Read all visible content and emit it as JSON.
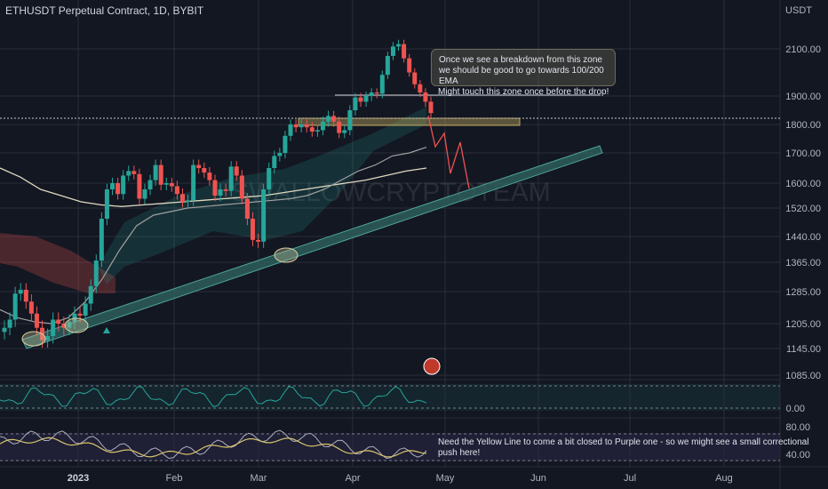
{
  "header": {
    "title": "ETHUSDT Perpetual Contract, 1D, BYBIT",
    "currency": "USDT"
  },
  "watermark": "SWALLOWCRYPTOTEAM",
  "annotations": {
    "note1": "Once we see a breakdown from this zone we should be good to go towards 100/200 EMA",
    "note2": "Might touch this zone once before the drop!",
    "note3": "Need the Yellow Line to come a bit closed to Purple one - so we might see a small correctional push here!"
  },
  "colors": {
    "bg": "#131722",
    "up": "#26a69a",
    "down": "#ef5350",
    "grid": "#2a2e39",
    "trendline": "#2e5e5a"
  },
  "chart_data": {
    "type": "candlestick",
    "y_axis_labels": [
      "2100.00",
      "1900.00",
      "1800.00",
      "1700.00",
      "1600.00",
      "1520.00",
      "1440.00",
      "1365.00",
      "1285.00",
      "1205.00",
      "1145.00",
      "1085.00"
    ],
    "x_axis_labels": [
      "2023",
      "Feb",
      "Mar",
      "Apr",
      "May",
      "Jun",
      "Jul",
      "Aug"
    ],
    "indicator1_labels": [
      "0.00"
    ],
    "indicator2_labels": [
      "80.00",
      "40.00"
    ],
    "price_path": [
      1195,
      1215,
      1280,
      1290,
      1260,
      1230,
      1195,
      1165,
      1175,
      1215,
      1205,
      1195,
      1210,
      1230,
      1225,
      1255,
      1300,
      1370,
      1490,
      1580,
      1600,
      1565,
      1625,
      1640,
      1630,
      1550,
      1580,
      1610,
      1660,
      1595,
      1600,
      1590,
      1565,
      1540,
      1545,
      1660,
      1650,
      1635,
      1610,
      1560,
      1580,
      1575,
      1655,
      1625,
      1550,
      1490,
      1430,
      1425,
      1580,
      1650,
      1690,
      1700,
      1760,
      1800,
      1790,
      1800,
      1790,
      1775,
      1780,
      1810,
      1830,
      1810,
      1770,
      1780,
      1850,
      1895,
      1880,
      1900,
      1915,
      1910,
      1990,
      2070,
      2110,
      2120,
      2060,
      2000,
      1950,
      1915,
      1880,
      1840
    ],
    "ema_100": [
      1240,
      1220,
      1210,
      1205,
      1220,
      1260,
      1320,
      1400,
      1470,
      1500,
      1510,
      1520,
      1525,
      1530,
      1535,
      1540,
      1545,
      1550,
      1560,
      1580,
      1610,
      1640,
      1660,
      1690,
      1700,
      1720
    ],
    "ema_200": [
      1650,
      1620,
      1580,
      1560,
      1540,
      1530,
      1525,
      1530,
      1535,
      1540,
      1545,
      1550,
      1555,
      1560,
      1570,
      1580,
      1590,
      1600,
      1610,
      1625,
      1640,
      1650
    ]
  }
}
